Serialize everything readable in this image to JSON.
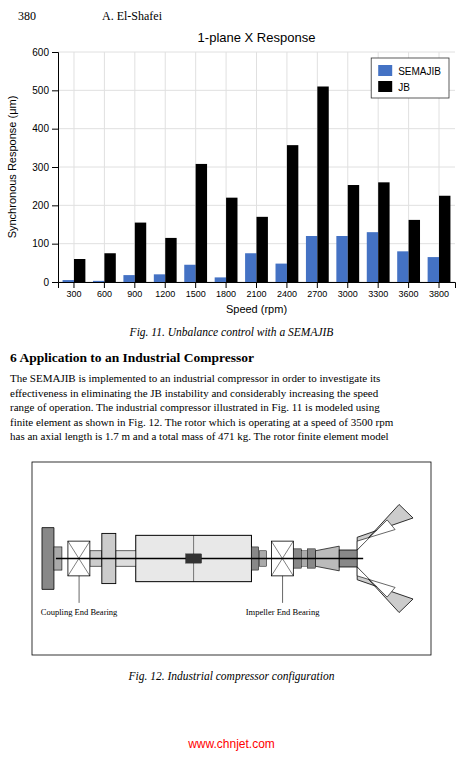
{
  "header_page": "380",
  "header_author": "A. El-Shafei",
  "chart_data": {
    "type": "bar",
    "title": "1-plane X Response",
    "x_label": "Speed (rpm)",
    "y_label": "Synchronous Response (μm)",
    "categories": [
      "300",
      "600",
      "900",
      "1200",
      "1500",
      "1800",
      "2100",
      "2400",
      "2700",
      "3000",
      "3300",
      "3600",
      "3800"
    ],
    "series": [
      {
        "name": "SEMAJIB",
        "color": "#4472C4",
        "values": [
          5,
          3,
          18,
          20,
          45,
          12,
          75,
          48,
          120,
          120,
          130,
          80,
          65
        ]
      },
      {
        "name": "JB",
        "color": "#000000",
        "values": [
          60,
          75,
          155,
          115,
          308,
          220,
          170,
          357,
          510,
          253,
          260,
          162,
          225
        ]
      }
    ],
    "ylim": [
      0,
      600
    ],
    "yticks": [
      0,
      100,
      200,
      300,
      400,
      500,
      600
    ],
    "grid": true,
    "legend": "upper right"
  },
  "fig11_caption": "Fig. 11.  Unbalance control with a SEMAJIB",
  "section_title": "6   Application to an Industrial Compressor",
  "body_text_lines": [
    "The SEMAJIB is implemented to an industrial compressor in order to investigate its",
    "effectiveness in eliminating the JB instability and considerably increasing the speed",
    "range of operation. The industrial compressor illustrated in Fig. 11 is modeled using",
    "finite element as shown in Fig. 12. The rotor which is operating at a speed of 3500 rpm",
    "has an axial length is 1.7 m and a total mass of 471 kg. The rotor finite element model"
  ],
  "diagram_labels": [
    "Coupling End Bearing",
    "Impeller End Bearing"
  ],
  "fig12_caption": "Fig. 12.   Industrial compressor configuration",
  "watermark": "www.chnjet.com"
}
